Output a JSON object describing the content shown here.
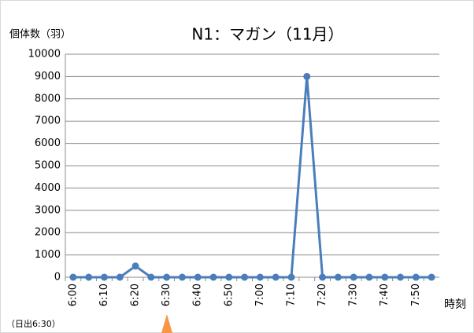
{
  "chart_data": {
    "type": "line",
    "title": "N1：マガン（11月）",
    "y_label": "個体数（羽）",
    "x_label": "時刻",
    "annotation": "（日出6:30）",
    "categories": [
      "6:00",
      null,
      "6:10",
      null,
      "6:20",
      null,
      "6:30",
      null,
      "6:40",
      null,
      "6:50",
      null,
      "7:00",
      null,
      "7:10",
      null,
      "7:20",
      null,
      "7:30",
      null,
      "7:40",
      null,
      "7:50",
      null
    ],
    "values": [
      0,
      0,
      0,
      0,
      500,
      0,
      0,
      0,
      0,
      0,
      0,
      0,
      0,
      0,
      0,
      9000,
      0,
      0,
      0,
      0,
      0,
      0,
      0,
      0
    ],
    "color": "#4a7ebb",
    "ylim": [
      0,
      10000
    ],
    "yticks": [
      0,
      1000,
      2000,
      3000,
      4000,
      5000,
      6000,
      7000,
      8000,
      9000,
      10000
    ],
    "grid": true
  }
}
